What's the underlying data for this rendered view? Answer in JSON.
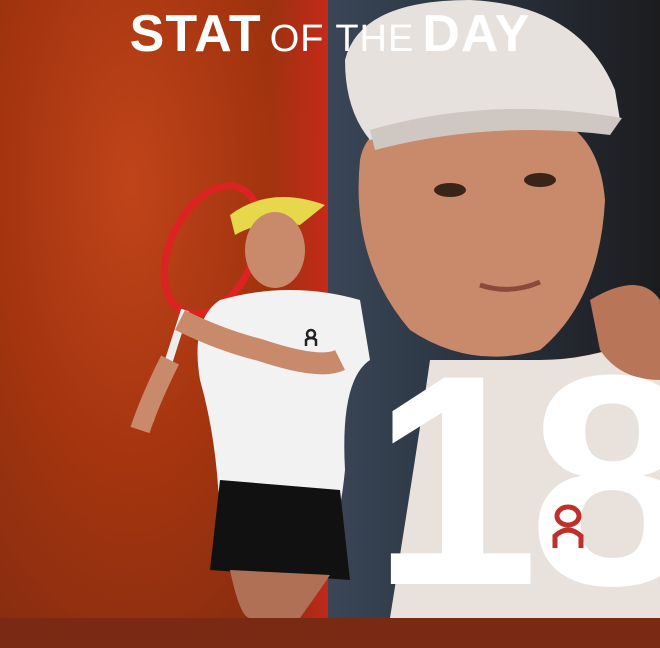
{
  "title": {
    "part1": "STAT",
    "part2": "OF THE",
    "part3": "DAY"
  },
  "stat_value": "18",
  "shirt_logo": "On",
  "colors": {
    "left_bg": "#a5350f",
    "right_bg": "#2b3542",
    "text": "#ffffff"
  }
}
